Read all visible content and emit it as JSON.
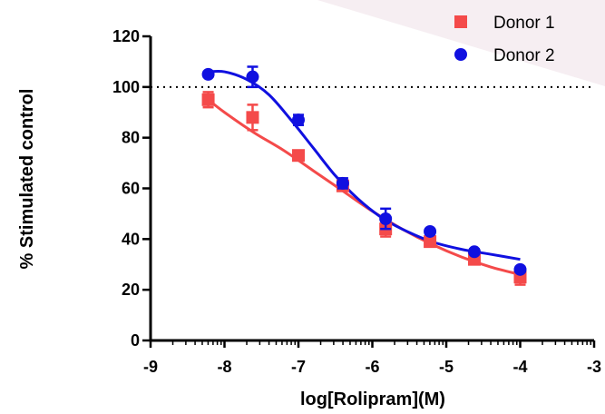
{
  "chart_data": {
    "type": "scatter",
    "xlabel": "log[Rolipram](M)",
    "ylabel": "% Stimulated control",
    "xlim": [
      -9,
      -3
    ],
    "ylim": [
      0,
      120
    ],
    "x_ticks": [
      "-9",
      "-8",
      "-7",
      "-6",
      "-5",
      "-4",
      "-3"
    ],
    "y_ticks": [
      "0",
      "20",
      "40",
      "60",
      "80",
      "100",
      "120"
    ],
    "reference_line": {
      "y": 100,
      "style": "dotted"
    },
    "legend_position": "top-right",
    "series": [
      {
        "name": "Donor 1",
        "marker": "square",
        "color": "#f44a4a",
        "points": [
          {
            "x": -8.22,
            "y": 95,
            "err": 3
          },
          {
            "x": -7.62,
            "y": 88,
            "err": 5
          },
          {
            "x": -7.0,
            "y": 73,
            "err": 1
          },
          {
            "x": -6.4,
            "y": 61,
            "err": 2
          },
          {
            "x": -5.82,
            "y": 44,
            "err": 3
          },
          {
            "x": -5.22,
            "y": 39,
            "err": 2
          },
          {
            "x": -4.62,
            "y": 32,
            "err": 2
          },
          {
            "x": -4.0,
            "y": 25,
            "err": 3
          }
        ],
        "fit": [
          {
            "x": -8.22,
            "y": 95
          },
          {
            "x": -8.0,
            "y": 90
          },
          {
            "x": -7.6,
            "y": 82
          },
          {
            "x": -7.2,
            "y": 75
          },
          {
            "x": -6.8,
            "y": 67
          },
          {
            "x": -6.4,
            "y": 59
          },
          {
            "x": -6.0,
            "y": 51
          },
          {
            "x": -5.6,
            "y": 44
          },
          {
            "x": -5.2,
            "y": 38
          },
          {
            "x": -4.8,
            "y": 33
          },
          {
            "x": -4.4,
            "y": 29
          },
          {
            "x": -4.0,
            "y": 26
          }
        ]
      },
      {
        "name": "Donor 2",
        "marker": "circle",
        "color": "#1010e0",
        "points": [
          {
            "x": -8.22,
            "y": 105,
            "err": 1
          },
          {
            "x": -7.62,
            "y": 104,
            "err": 4
          },
          {
            "x": -7.0,
            "y": 87,
            "err": 2
          },
          {
            "x": -6.4,
            "y": 62,
            "err": 2
          },
          {
            "x": -5.82,
            "y": 48,
            "err": 4
          },
          {
            "x": -5.22,
            "y": 43,
            "err": 1
          },
          {
            "x": -4.62,
            "y": 35,
            "err": 1
          },
          {
            "x": -4.0,
            "y": 28,
            "err": 1
          }
        ],
        "fit": [
          {
            "x": -8.22,
            "y": 106
          },
          {
            "x": -8.0,
            "y": 106
          },
          {
            "x": -7.7,
            "y": 103
          },
          {
            "x": -7.4,
            "y": 97
          },
          {
            "x": -7.1,
            "y": 87
          },
          {
            "x": -6.8,
            "y": 76
          },
          {
            "x": -6.5,
            "y": 65
          },
          {
            "x": -6.2,
            "y": 56
          },
          {
            "x": -5.9,
            "y": 49
          },
          {
            "x": -5.6,
            "y": 44
          },
          {
            "x": -5.2,
            "y": 39
          },
          {
            "x": -4.8,
            "y": 36
          },
          {
            "x": -4.4,
            "y": 34
          },
          {
            "x": -4.0,
            "y": 32
          }
        ]
      }
    ]
  }
}
